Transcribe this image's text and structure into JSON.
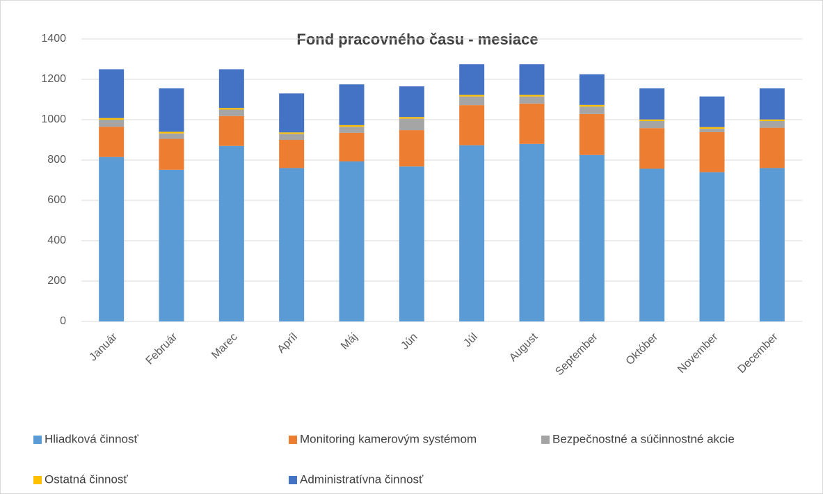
{
  "chart_data": {
    "type": "stacked_bar",
    "title": "Fond pracovného času - mesiace",
    "categories": [
      "Január",
      "Február",
      "Marec",
      "Apríl",
      "Máj",
      "Jún",
      "Júl",
      "August",
      "September",
      "Október",
      "November",
      "December"
    ],
    "series": [
      {
        "name": "Hliadková činnosť",
        "color": "#5b9bd5",
        "values": [
          815,
          752,
          870,
          760,
          793,
          768,
          873,
          880,
          825,
          757,
          740,
          760
        ]
      },
      {
        "name": "Monitoring kamerovým systémom",
        "color": "#ed7d31",
        "values": [
          150,
          153,
          148,
          140,
          142,
          180,
          199,
          200,
          203,
          201,
          198,
          200
        ]
      },
      {
        "name": "Bezpečnostné a súčinnostné akcie",
        "color": "#a5a5a5",
        "values": [
          35,
          27,
          32,
          30,
          30,
          57,
          43,
          35,
          37,
          35,
          17,
          33
        ]
      },
      {
        "name": "Ostatná činnosť",
        "color": "#ffc000",
        "values": [
          8,
          8,
          8,
          7,
          8,
          8,
          8,
          8,
          8,
          8,
          8,
          8
        ]
      },
      {
        "name": "Administratívna činnosť",
        "color": "#4472c4",
        "values": [
          242,
          215,
          192,
          193,
          202,
          152,
          152,
          152,
          152,
          154,
          152,
          154
        ]
      }
    ],
    "ylim": [
      0,
      1400
    ],
    "yticks": [
      0,
      200,
      400,
      600,
      800,
      1000,
      1200,
      1400
    ],
    "grid": true
  }
}
